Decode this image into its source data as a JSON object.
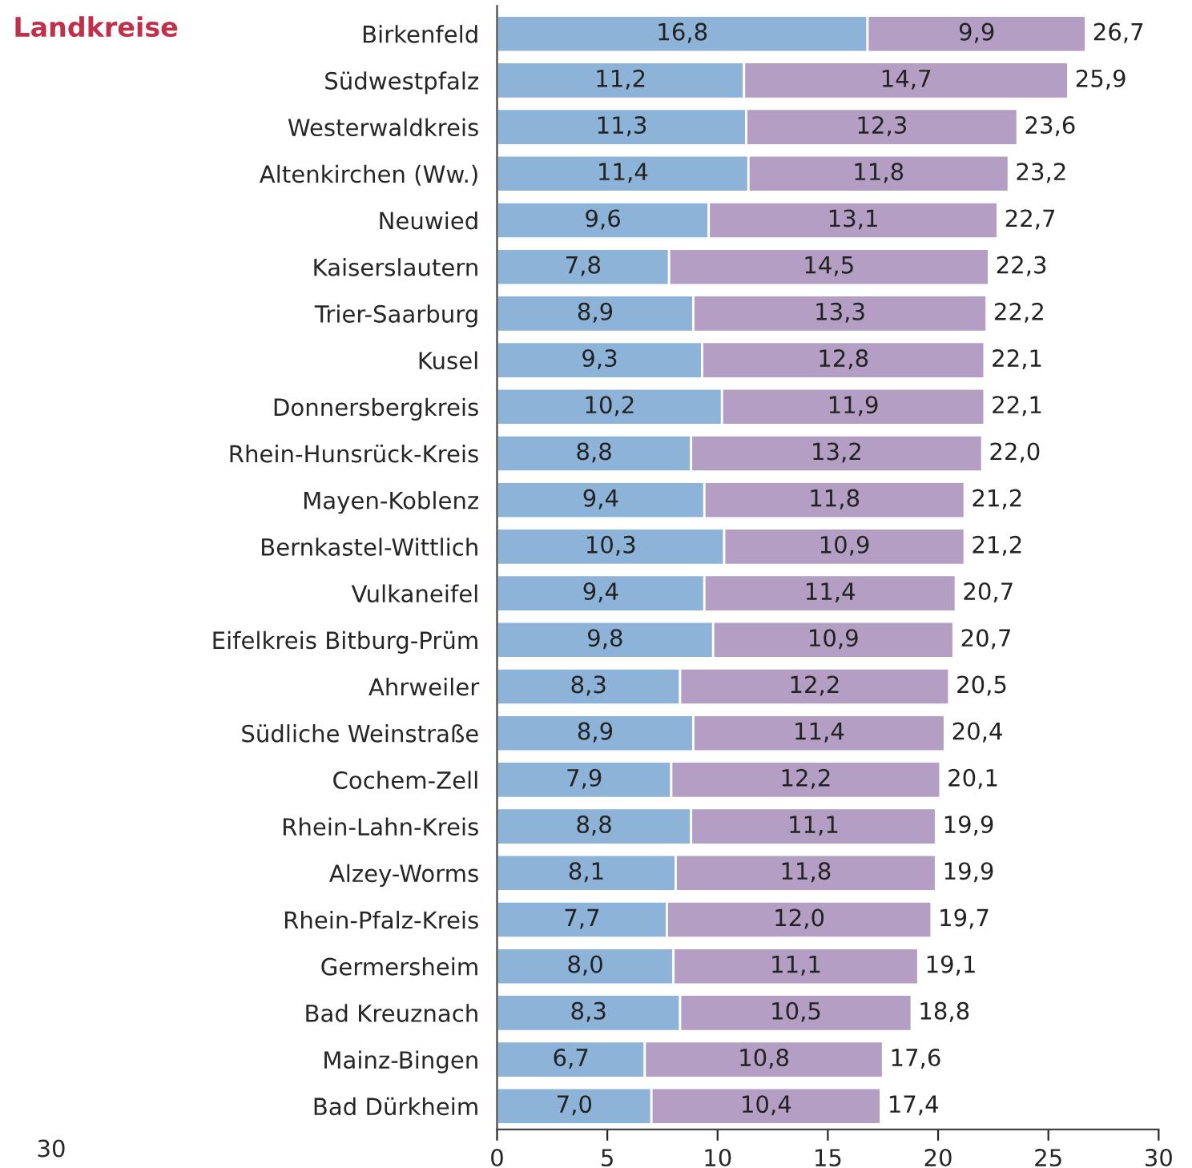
{
  "chart_data": {
    "type": "bar",
    "orientation": "horizontal",
    "stacked": true,
    "title": "Landkreise",
    "categories": [
      "Birkenfeld",
      "Südwestpfalz",
      "Westerwaldkreis",
      "Altenkirchen (Ww.)",
      "Neuwied",
      "Kaiserslautern",
      "Trier-Saarburg",
      "Kusel",
      "Donnersbergkreis",
      "Rhein-Hunsrück-Kreis",
      "Mayen-Koblenz",
      "Bernkastel-Wittlich",
      "Vulkaneifel",
      "Eifelkreis Bitburg-Prüm",
      "Ahrweiler",
      "Südliche Weinstraße",
      "Cochem-Zell",
      "Rhein-Lahn-Kreis",
      "Alzey-Worms",
      "Rhein-Pfalz-Kreis",
      "Germersheim",
      "Bad Kreuznach",
      "Mainz-Bingen",
      "Bad Dürkheim"
    ],
    "series": [
      {
        "color": "#8db4d8",
        "values": [
          16.8,
          11.2,
          11.3,
          11.4,
          9.6,
          7.8,
          8.9,
          9.3,
          10.2,
          8.8,
          9.4,
          10.3,
          9.4,
          9.8,
          8.3,
          8.9,
          7.9,
          8.8,
          8.1,
          7.7,
          8.0,
          8.3,
          6.7,
          7.0
        ],
        "value_labels": [
          "16,8",
          "11,2",
          "11,3",
          "11,4",
          "9,6",
          "7,8",
          "8,9",
          "9,3",
          "10,2",
          "8,8",
          "9,4",
          "10,3",
          "9,4",
          "9,8",
          "8,3",
          "8,9",
          "7,9",
          "8,8",
          "8,1",
          "7,7",
          "8,0",
          "8,3",
          "6,7",
          "7,0"
        ]
      },
      {
        "color": "#b59ec4",
        "values": [
          9.9,
          14.7,
          12.3,
          11.8,
          13.1,
          14.5,
          13.3,
          12.8,
          11.9,
          13.2,
          11.8,
          10.9,
          11.4,
          10.9,
          12.2,
          11.4,
          12.2,
          11.1,
          11.8,
          12.0,
          11.1,
          10.5,
          10.8,
          10.4
        ],
        "value_labels": [
          "9,9",
          "14,7",
          "12,3",
          "11,8",
          "13,1",
          "14,5",
          "13,3",
          "12,8",
          "11,9",
          "13,2",
          "11,8",
          "10,9",
          "11,4",
          "10,9",
          "12,2",
          "11,4",
          "12,2",
          "11,1",
          "11,8",
          "12,0",
          "11,1",
          "10,5",
          "10,8",
          "10,4"
        ]
      }
    ],
    "totals": [
      "26,7",
      "25,9",
      "23,6",
      "23,2",
      "22,7",
      "22,3",
      "22,2",
      "22,1",
      "22,1",
      "22,0",
      "21,2",
      "21,2",
      "20,7",
      "20,7",
      "20,5",
      "20,4",
      "20,1",
      "19,9",
      "19,9",
      "19,7",
      "19,1",
      "18,8",
      "17,6",
      "17,4"
    ],
    "xlim": [
      0,
      30
    ],
    "xticks": [
      0,
      5,
      10,
      15,
      20,
      25,
      30
    ],
    "annotations": [
      "30"
    ]
  }
}
